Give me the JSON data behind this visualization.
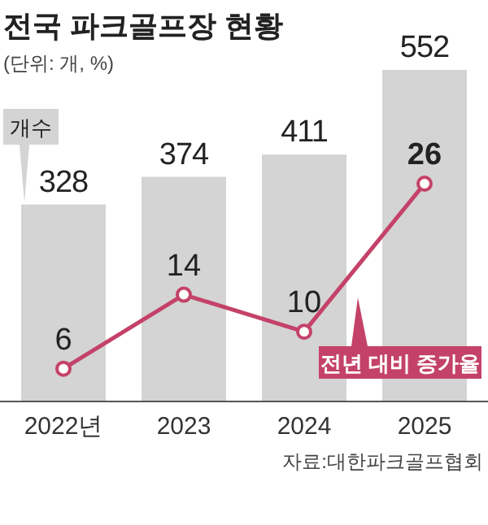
{
  "chart_data": {
    "type": "bar",
    "title": "전국 파크골프장 현황",
    "subtitle": "(단위: 개, %)",
    "categories": [
      "2022년",
      "2023",
      "2024",
      "2025"
    ],
    "series": [
      {
        "name": "개수",
        "color": "#d4d4d4",
        "values": [
          328,
          374,
          411,
          552
        ]
      },
      {
        "name": "전년 대비 증가율",
        "type": "line",
        "axis": "y2",
        "color": "#c4426a",
        "values": [
          6,
          14,
          10,
          26
        ]
      }
    ],
    "data_labels": true,
    "marker": "circle",
    "annotations": [
      "자료:대한파크골프협회"
    ]
  }
}
